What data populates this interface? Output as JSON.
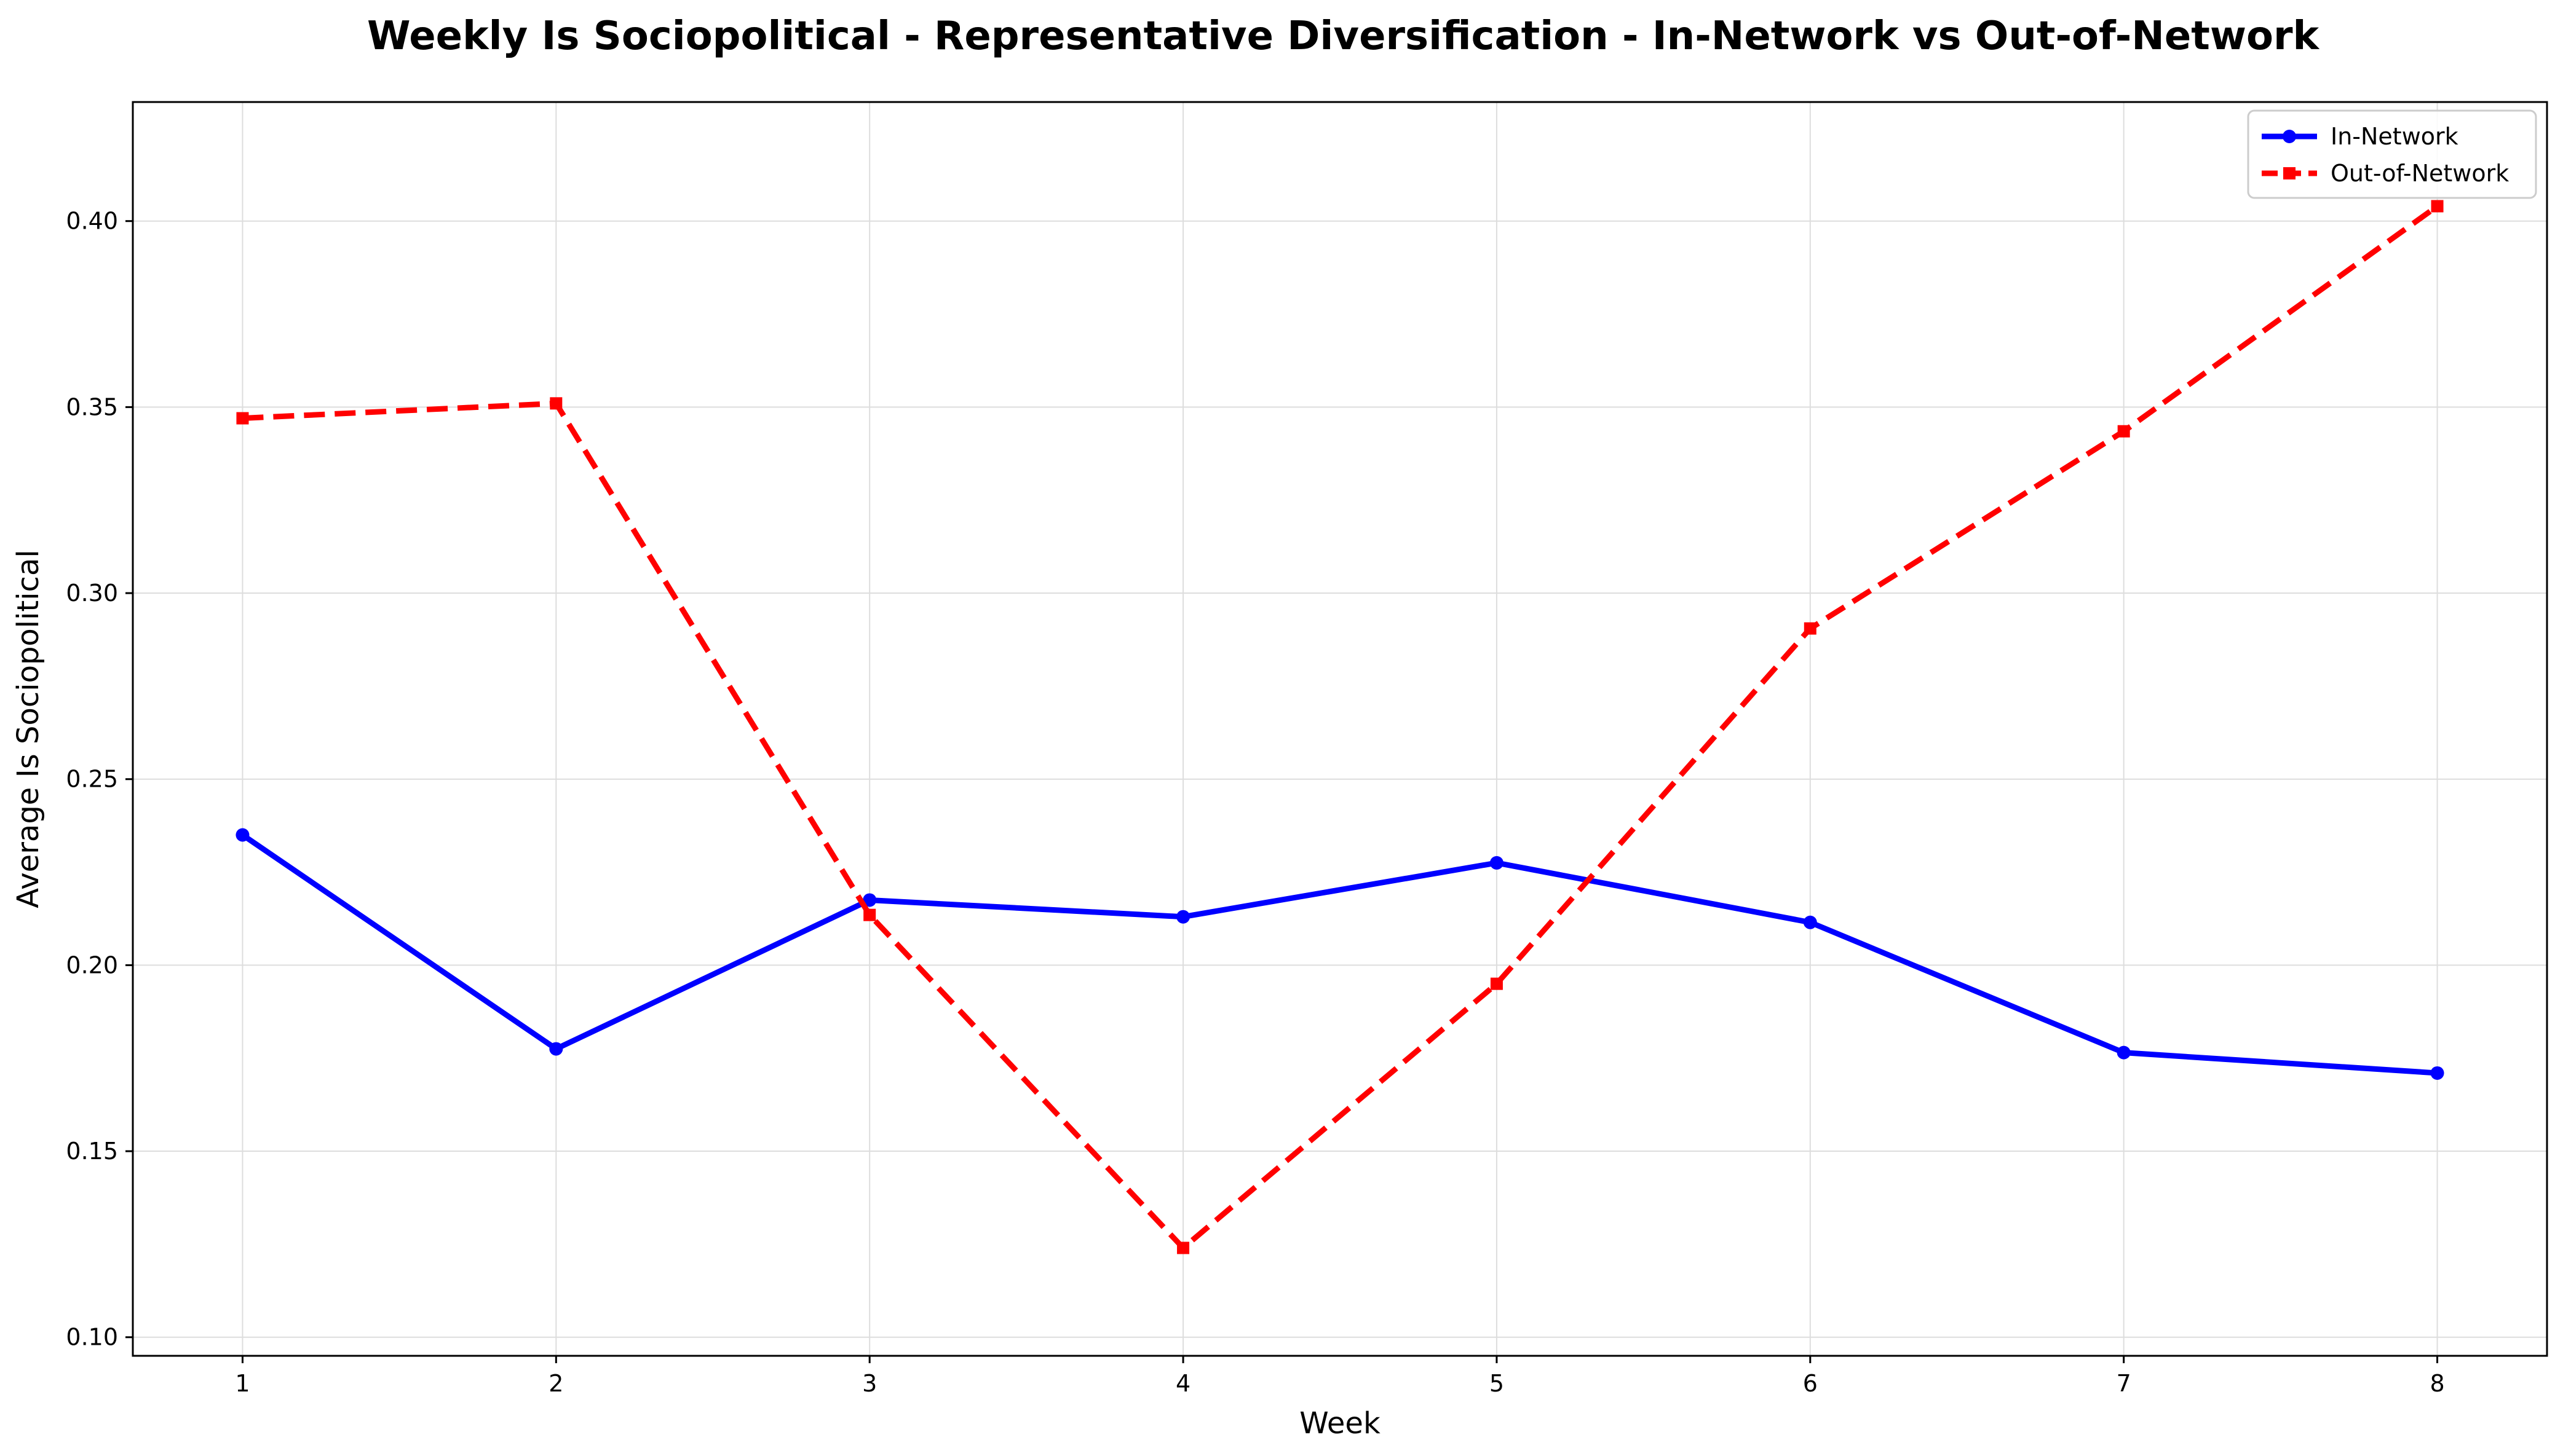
{
  "chart_data": {
    "type": "line",
    "title": "Weekly Is Sociopolitical - Representative Diversification - In-Network vs Out-of-Network",
    "xlabel": "Week",
    "ylabel": "Average Is Sociopolitical",
    "x": [
      1,
      2,
      3,
      4,
      5,
      6,
      7,
      8
    ],
    "x_tick_labels": [
      "1",
      "2",
      "3",
      "4",
      "5",
      "6",
      "7",
      "8"
    ],
    "xlim": [
      0.65,
      8.35
    ],
    "ylim": [
      0.095,
      0.432
    ],
    "y_ticks": [
      0.1,
      0.15,
      0.2,
      0.25,
      0.3,
      0.35,
      0.4
    ],
    "y_tick_labels": [
      "0.10",
      "0.15",
      "0.20",
      "0.25",
      "0.30",
      "0.35",
      "0.40"
    ],
    "grid": true,
    "legend_position": "top-right",
    "series": [
      {
        "name": "In-Network",
        "color": "#0000ff",
        "line_style": "solid",
        "marker": "circle",
        "values": [
          0.235,
          0.1775,
          0.2175,
          0.213,
          0.2275,
          0.2115,
          0.1765,
          0.171
        ]
      },
      {
        "name": "Out-of-Network",
        "color": "#ff0000",
        "line_style": "dashed",
        "marker": "square",
        "values": [
          0.347,
          0.351,
          0.2135,
          0.124,
          0.195,
          0.2905,
          0.3435,
          0.404
        ]
      }
    ]
  }
}
